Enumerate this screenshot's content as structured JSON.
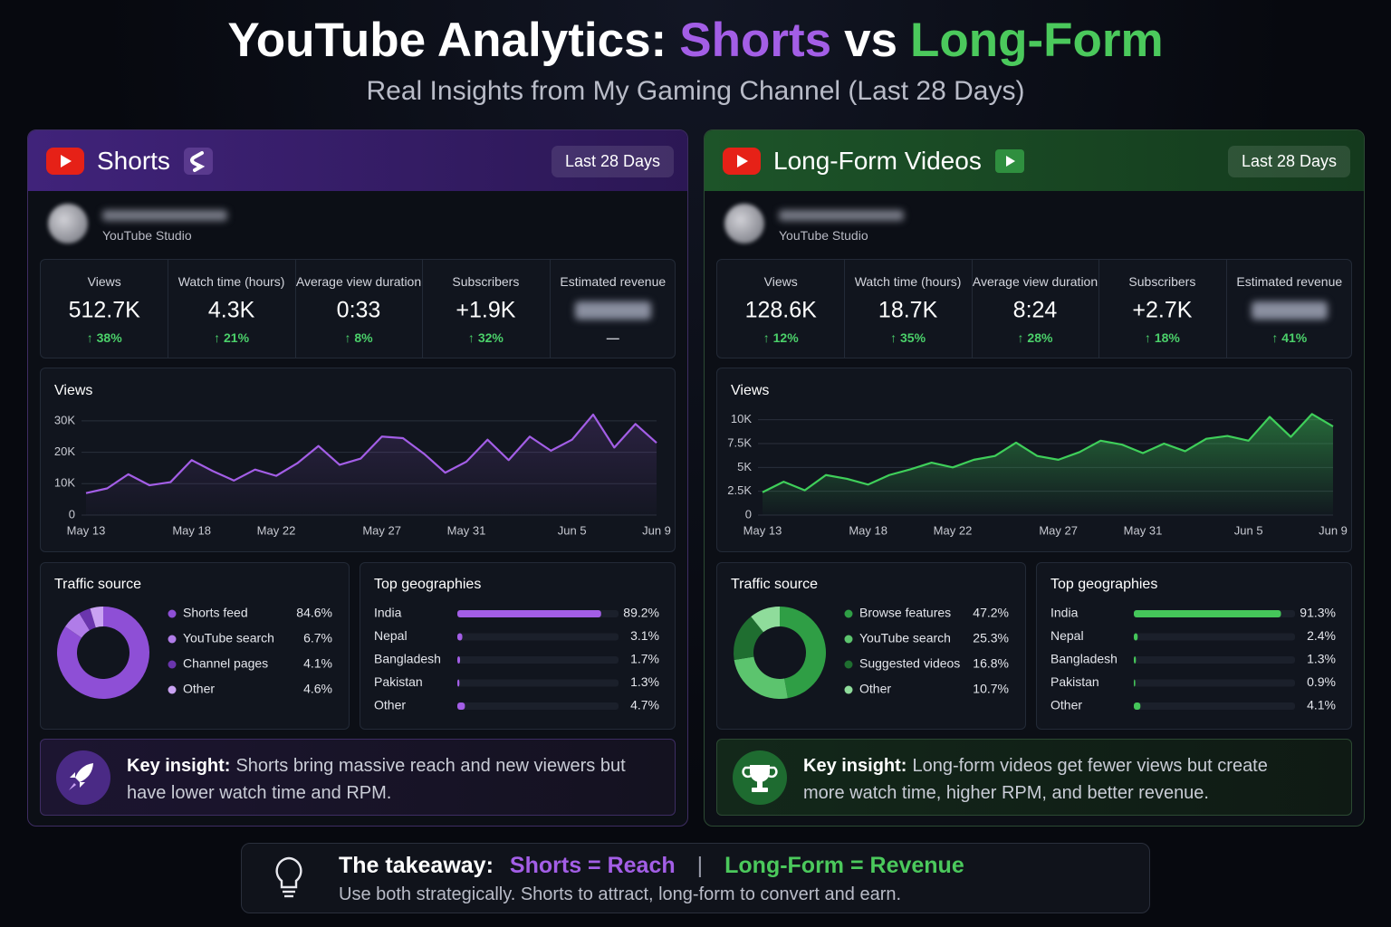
{
  "header": {
    "title": "YouTube Analytics:",
    "title_shorts": "Shorts",
    "title_vs": "vs",
    "title_long": "Long-Form",
    "subtitle": "Real Insights from My Gaming Channel (Last 28 Days)"
  },
  "panels": [
    {
      "name": "Shorts",
      "badge": "Last 28 Days",
      "studio": "YouTube Studio",
      "stats": [
        {
          "label": "Views",
          "value": "512.7K",
          "change": "↑ 38%"
        },
        {
          "label": "Watch time (hours)",
          "value": "4.3K",
          "change": "↑ 21%"
        },
        {
          "label": "Average view duration",
          "value": "0:33",
          "change": "↑ 8%"
        },
        {
          "label": "Subscribers",
          "value": "+1.9K",
          "change": "↑ 32%"
        },
        {
          "label": "Estimated revenue",
          "change": "—"
        }
      ],
      "insight_label": "Key insight:",
      "insight": "Shorts bring massive reach and new viewers but have lower watch time and RPM."
    },
    {
      "name": "Long-Form Videos",
      "badge": "Last 28 Days",
      "studio": "YouTube Studio",
      "stats": [
        {
          "label": "Views",
          "value": "128.6K",
          "change": "↑ 12%"
        },
        {
          "label": "Watch time (hours)",
          "value": "18.7K",
          "change": "↑ 35%"
        },
        {
          "label": "Average view duration",
          "value": "8:24",
          "change": "↑ 28%"
        },
        {
          "label": "Subscribers",
          "value": "+2.7K",
          "change": "↑ 18%"
        },
        {
          "label": "Estimated revenue",
          "change": "↑ 41%"
        }
      ],
      "insight_label": "Key insight:",
      "insight": "Long-form videos get fewer views but create more watch time, higher RPM, and better revenue."
    }
  ],
  "takeaway": {
    "label": "The takeaway:",
    "shorts": "Shorts = Reach",
    "separator": "|",
    "long": "Long-Form = Revenue",
    "text": "Use both strategically. Shorts to attract, long-form to convert and earn."
  },
  "chart_data": [
    {
      "type": "line",
      "title": "Views",
      "color": "#a35ee6",
      "categories": [
        "May 13",
        null,
        null,
        null,
        null,
        "May 18",
        null,
        null,
        null,
        "May 22",
        null,
        null,
        null,
        null,
        "May 27",
        null,
        null,
        null,
        "May 31",
        null,
        null,
        null,
        null,
        "Jun 5",
        null,
        null,
        null,
        "Jun 9"
      ],
      "values": [
        7000,
        8500,
        13000,
        9500,
        10500,
        17500,
        14000,
        11000,
        14500,
        12500,
        16500,
        22000,
        16000,
        18000,
        25000,
        24500,
        19500,
        13500,
        17000,
        24000,
        17500,
        25000,
        20500,
        24000,
        32000,
        21500,
        29000,
        23000
      ],
      "ylim": [
        0,
        34000
      ],
      "yticks": [
        0,
        {
          "value": 10000,
          "label": "10K"
        },
        {
          "value": 20000,
          "label": "20K"
        },
        {
          "value": 30000,
          "label": "30K"
        }
      ],
      "grid": true
    },
    {
      "type": "line",
      "title": "Views",
      "color": "#3fcf5a",
      "categories": [
        "May 13",
        null,
        null,
        null,
        null,
        "May 18",
        null,
        null,
        null,
        "May 22",
        null,
        null,
        null,
        null,
        "May 27",
        null,
        null,
        null,
        "May 31",
        null,
        null,
        null,
        null,
        "Jun 5",
        null,
        null,
        null,
        "Jun 9"
      ],
      "values": [
        2400,
        3500,
        2600,
        4200,
        3800,
        3200,
        4200,
        4800,
        5500,
        5000,
        5800,
        6200,
        7600,
        6200,
        5800,
        6600,
        7800,
        7400,
        6500,
        7500,
        6700,
        8000,
        8300,
        7800,
        10300,
        8200,
        10600,
        9300
      ],
      "ylim": [
        0,
        11200
      ],
      "yticks": [
        0,
        {
          "value": 2500,
          "label": "2.5K"
        },
        {
          "value": 5000,
          "label": "5K"
        },
        {
          "value": 7500,
          "label": "7.5K"
        },
        {
          "value": 10000,
          "label": "10K"
        }
      ],
      "grid": true
    },
    {
      "type": "pie",
      "donut": true,
      "title": "Traffic source",
      "categories": [
        "Shorts feed",
        "YouTube search",
        "Channel pages",
        "Other"
      ],
      "values": [
        84.6,
        6.7,
        4.1,
        4.6
      ],
      "value_labels": [
        "84.6%",
        "6.7%",
        "4.1%",
        "4.6%"
      ],
      "colors": [
        "#8e4fd6",
        "#b07ce8",
        "#6a35ad",
        "#c9a2f2"
      ]
    },
    {
      "type": "pie",
      "donut": true,
      "title": "Traffic source",
      "categories": [
        "Browse features",
        "YouTube search",
        "Suggested videos",
        "Other"
      ],
      "values": [
        47.2,
        25.3,
        16.8,
        10.7
      ],
      "value_labels": [
        "47.2%",
        "25.3%",
        "16.8%",
        "10.7%"
      ],
      "colors": [
        "#2f9e45",
        "#5cc46e",
        "#1f6e30",
        "#8fdc9b"
      ]
    },
    {
      "type": "bar",
      "orientation": "horizontal",
      "title": "Top geographies",
      "categories": [
        "India",
        "Nepal",
        "Bangladesh",
        "Pakistan",
        "Other"
      ],
      "values": [
        89.2,
        3.1,
        1.7,
        1.3,
        4.7
      ],
      "value_labels": [
        "89.2%",
        "3.1%",
        "1.7%",
        "1.3%",
        "4.7%"
      ],
      "color": "#a35ee6",
      "xlim": [
        0,
        100
      ]
    },
    {
      "type": "bar",
      "orientation": "horizontal",
      "title": "Top geographies",
      "categories": [
        "India",
        "Nepal",
        "Bangladesh",
        "Pakistan",
        "Other"
      ],
      "values": [
        91.3,
        2.4,
        1.3,
        0.9,
        4.1
      ],
      "value_labels": [
        "91.3%",
        "2.4%",
        "1.3%",
        "0.9%",
        "4.1%"
      ],
      "color": "#45c65a",
      "xlim": [
        0,
        100
      ]
    }
  ]
}
